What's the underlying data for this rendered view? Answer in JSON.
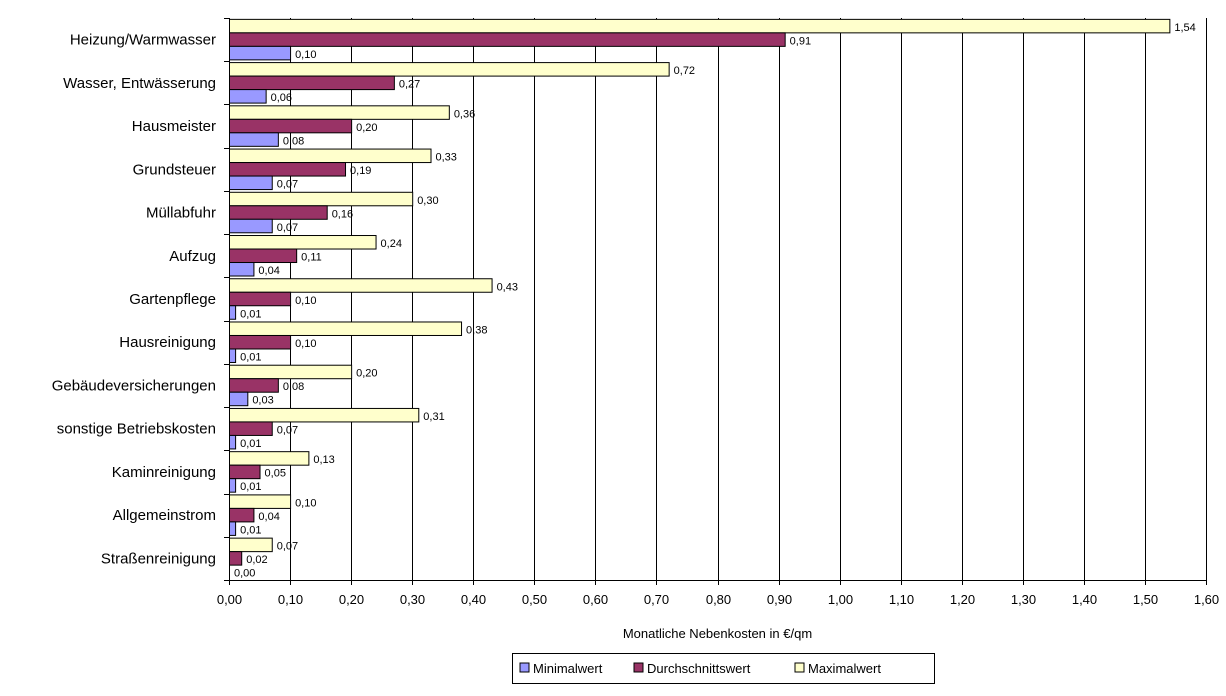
{
  "chart_data": {
    "type": "bar",
    "orientation": "horizontal",
    "categories": [
      "Heizung/Warmwasser",
      "Wasser, Entwässerung",
      "Hausmeister",
      "Grundsteuer",
      "Müllabfuhr",
      "Aufzug",
      "Gartenpflege",
      "Hausreinigung",
      "Gebäudeversicherungen",
      "sonstige Betriebskosten",
      "Kaminreinigung",
      "Allgemeinstrom",
      "Straßenreinigung"
    ],
    "series": [
      {
        "name": "Maximalwert",
        "color": "#ffffcc",
        "values": [
          1.54,
          0.72,
          0.36,
          0.33,
          0.3,
          0.24,
          0.43,
          0.38,
          0.2,
          0.31,
          0.13,
          0.1,
          0.07
        ],
        "labels": [
          "1,54",
          "0,72",
          "0,36",
          "0,33",
          "0,30",
          "0,24",
          "0,43",
          "0,38",
          "0,20",
          "0,31",
          "0,13",
          "0,10",
          "0,07"
        ]
      },
      {
        "name": "Durchschnittswert",
        "color": "#993366",
        "values": [
          0.91,
          0.27,
          0.2,
          0.19,
          0.16,
          0.11,
          0.1,
          0.1,
          0.08,
          0.07,
          0.05,
          0.04,
          0.02
        ],
        "labels": [
          "0,91",
          "0,27",
          "0,20",
          "0,19",
          "0,16",
          "0,11",
          "0,10",
          "0,10",
          "0,08",
          "0,07",
          "0,05",
          "0,04",
          "0,02"
        ]
      },
      {
        "name": "Minimalwert",
        "color": "#9999ff",
        "values": [
          0.1,
          0.06,
          0.08,
          0.07,
          0.07,
          0.04,
          0.01,
          0.01,
          0.03,
          0.01,
          0.01,
          0.01,
          0.0
        ],
        "labels": [
          "0,10",
          "0,06",
          "0,08",
          "0,07",
          "0,07",
          "0,04",
          "0,01",
          "0,01",
          "0,03",
          "0,01",
          "0,01",
          "0,01",
          "0,00"
        ]
      }
    ],
    "xlim": [
      0,
      1.6
    ],
    "xticks": [
      "0,00",
      "0,10",
      "0,20",
      "0,30",
      "0,40",
      "0,50",
      "0,60",
      "0,70",
      "0,80",
      "0,90",
      "1,00",
      "1,10",
      "1,20",
      "1,30",
      "1,40",
      "1,50",
      "1,60"
    ],
    "xlabel": "Monatliche Nebenkosten in €/qm",
    "ylabel": "",
    "grid": "vertical",
    "legend": {
      "placement": "bottom",
      "entries": [
        "Minimalwert",
        "Durchschnittswert",
        "Maximalwert"
      ]
    }
  }
}
